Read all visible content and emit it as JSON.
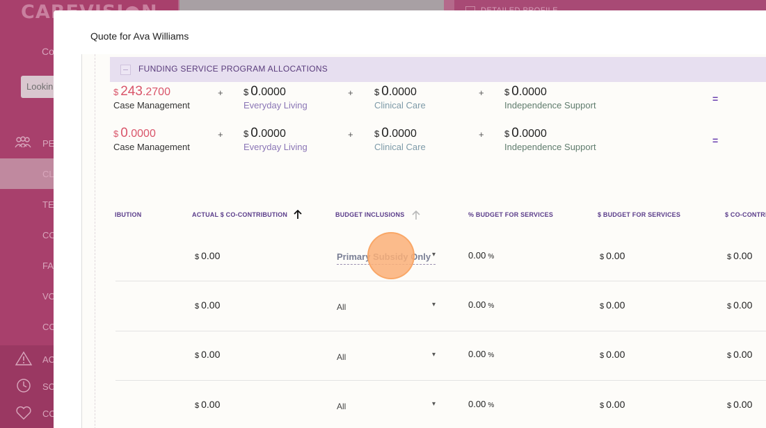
{
  "background": {
    "brand": "CAREVISI●N",
    "brand_sub": "Co",
    "search_text": "Lookin",
    "nav": [
      {
        "label": "PE",
        "icon": "people-icon",
        "active": false
      },
      {
        "label": "CL",
        "icon": "",
        "active": true
      },
      {
        "label": "TE",
        "icon": "",
        "active": false
      },
      {
        "label": "CO",
        "icon": "",
        "active": false
      },
      {
        "label": "FA",
        "icon": "",
        "active": false
      },
      {
        "label": "VO",
        "icon": "",
        "active": false
      },
      {
        "label": "CO",
        "icon": "",
        "active": false
      }
    ],
    "nav_lower": [
      {
        "label": "AC",
        "icon": "warning-icon"
      },
      {
        "label": "SC",
        "icon": "clock-icon"
      },
      {
        "label": "CO",
        "icon": "heart-icon"
      }
    ],
    "right_header": "DETAILED PROFILE"
  },
  "modal": {
    "title": "Quote for Ava Williams",
    "section_title": "FUNDING SERVICE PROGRAM ALLOCATIONS"
  },
  "allocations": [
    {
      "items": [
        {
          "currency": "$",
          "int": "243",
          "dec": ".2700",
          "label": "Case Management"
        },
        {
          "currency": "$",
          "int": "0",
          "dec": ".0000",
          "label": "Everyday Living"
        },
        {
          "currency": "$",
          "int": "0",
          "dec": ".0000",
          "label": "Clinical Care"
        },
        {
          "currency": "$",
          "int": "0",
          "dec": ".0000",
          "label": "Independence Support"
        }
      ]
    },
    {
      "items": [
        {
          "currency": "$",
          "int": "0",
          "dec": ".0000",
          "label": "Case Management"
        },
        {
          "currency": "$",
          "int": "0",
          "dec": ".0000",
          "label": "Everyday Living"
        },
        {
          "currency": "$",
          "int": "0",
          "dec": ".0000",
          "label": "Clinical Care"
        },
        {
          "currency": "$",
          "int": "0",
          "dec": ".0000",
          "label": "Independence Support"
        }
      ]
    }
  ],
  "operators": {
    "plus": "+",
    "equals": "="
  },
  "table": {
    "headers": [
      "IBUTION",
      "ACTUAL $ CO-CONTRIBUTION",
      "BUDGET INCLUSIONS",
      "% BUDGET FOR SERVICES",
      "$ BUDGET FOR SERVICES",
      "$ CO-CONTRI"
    ],
    "rows": [
      {
        "actual": "0.00",
        "inclusion": "Primary Subsidy Only",
        "pct": "0.00",
        "budget": "0.00",
        "co": "0.00"
      },
      {
        "actual": "0.00",
        "inclusion": "All",
        "pct": "0.00",
        "budget": "0.00",
        "co": "0.00"
      },
      {
        "actual": "0.00",
        "inclusion": "All",
        "pct": "0.00",
        "budget": "0.00",
        "co": "0.00"
      },
      {
        "actual": "0.00",
        "inclusion": "All",
        "pct": "0.00",
        "budget": "0.00",
        "co": "0.00"
      }
    ],
    "currency": "$",
    "pct_symbol": "%"
  },
  "colors": {
    "sidebar": "#a8406c",
    "accent_purple": "#5a3c8a",
    "negative_red": "#d9556a",
    "section_bg": "#e7dff0"
  }
}
